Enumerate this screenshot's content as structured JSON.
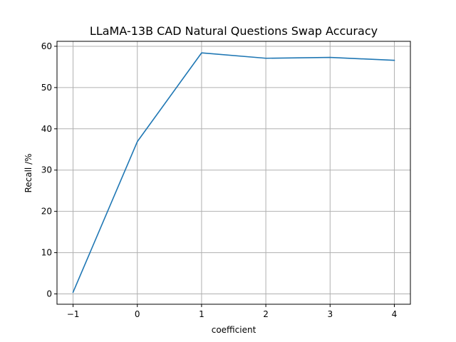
{
  "chart_data": {
    "type": "line",
    "title": "LLaMA-13B CAD Natural Questions Swap Accuracy",
    "xlabel": "coefficient",
    "ylabel": "Recall /%",
    "x": [
      -1,
      0,
      1,
      2,
      3,
      4
    ],
    "series": [
      {
        "values": [
          0.4,
          36.9,
          58.4,
          57.1,
          57.3,
          56.6
        ],
        "color": "#1f77b4"
      }
    ],
    "xlim": [
      -1.25,
      4.25
    ],
    "ylim": [
      -2.5,
      61.2
    ],
    "xticks": [
      -1,
      0,
      1,
      2,
      3,
      4
    ],
    "xtick_labels": [
      "−1",
      "0",
      "1",
      "2",
      "3",
      "4"
    ],
    "yticks": [
      0,
      10,
      20,
      30,
      40,
      50,
      60
    ],
    "ytick_labels": [
      "0",
      "10",
      "20",
      "30",
      "40",
      "50",
      "60"
    ],
    "grid": true
  }
}
